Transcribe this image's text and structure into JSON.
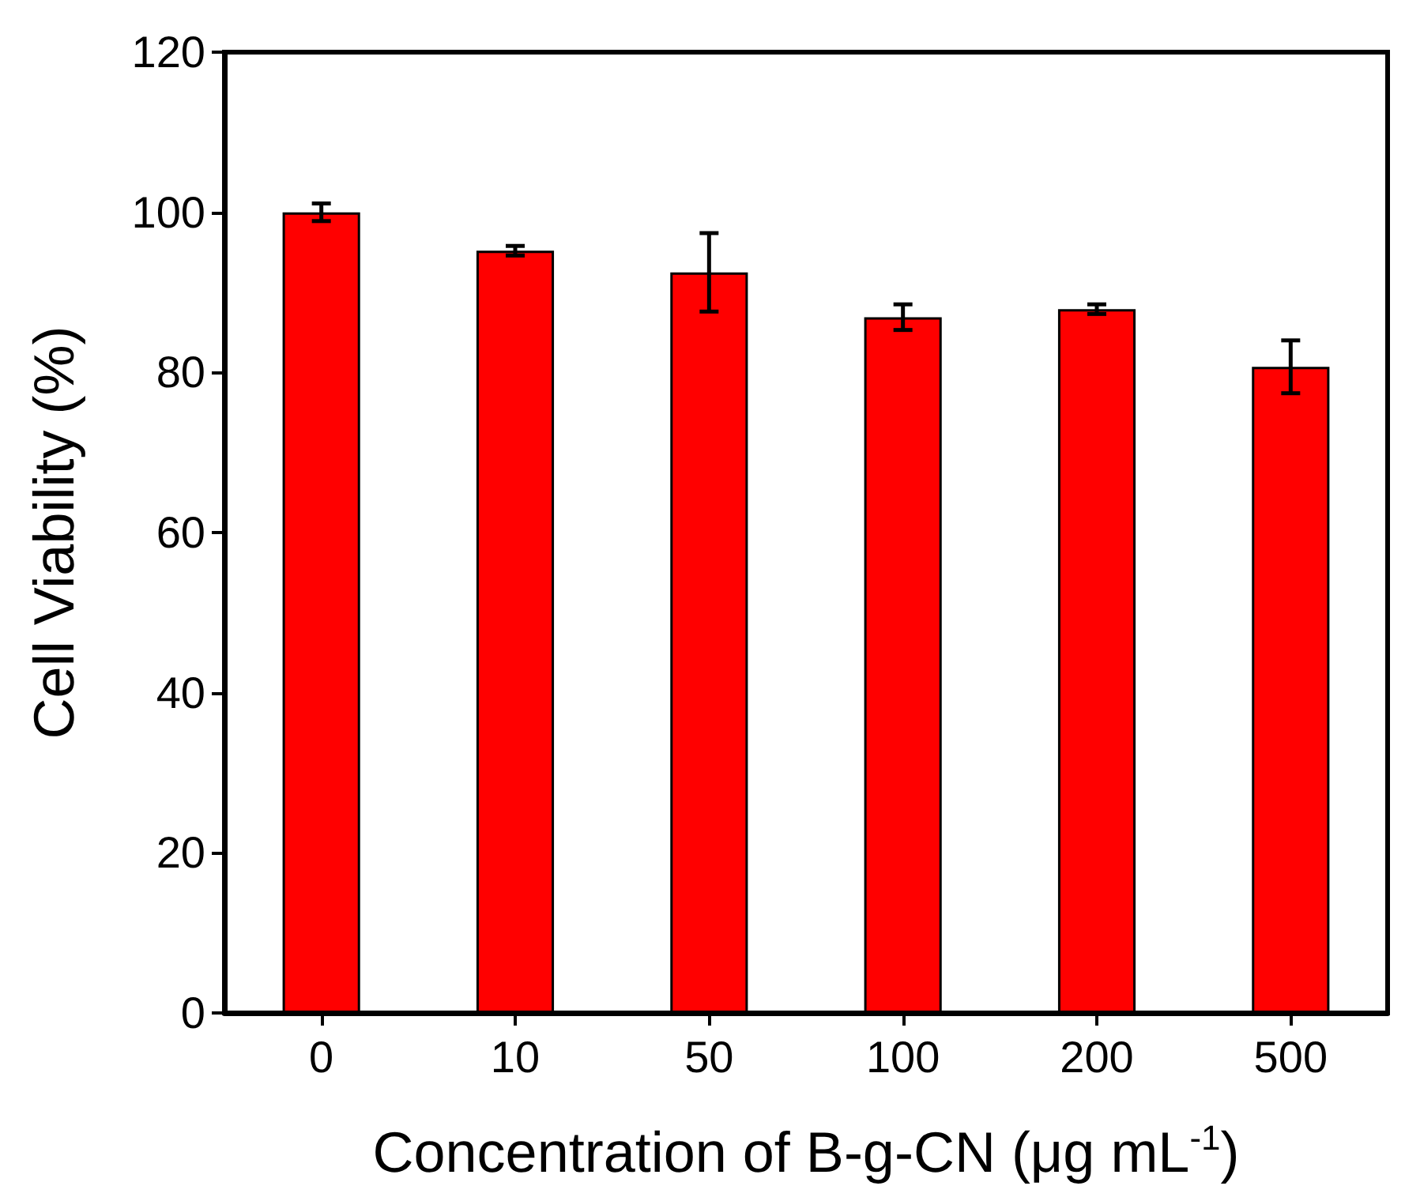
{
  "chart_data": {
    "type": "bar",
    "xlabel": "Concentration of B-g-CN (μg mL$^{-1}$)",
    "ylabel": "Cell Viability (%)",
    "categories": [
      "0",
      "10",
      "50",
      "100",
      "200",
      "500"
    ],
    "values": [
      100.0,
      95.2,
      92.5,
      86.9,
      87.9,
      80.7
    ],
    "errors": [
      1.1,
      0.6,
      4.9,
      1.6,
      0.6,
      3.3
    ],
    "color": "#ff0000",
    "ylim": [
      0,
      120
    ],
    "yticks": [
      0,
      20,
      40,
      60,
      80,
      100,
      120
    ],
    "grid": false
  }
}
